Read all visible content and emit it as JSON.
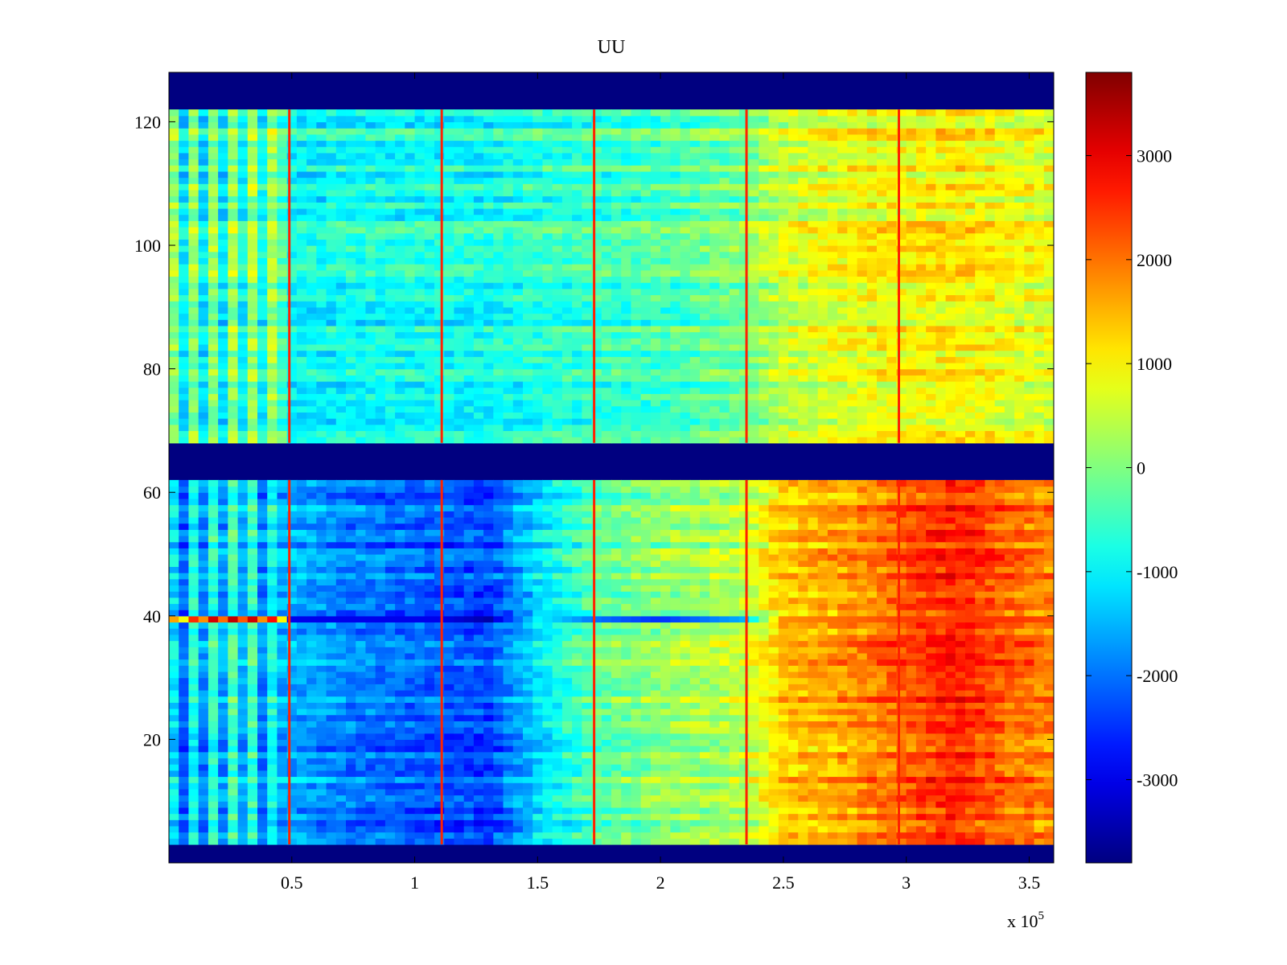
{
  "chart_data": {
    "type": "heatmap",
    "title": "UU",
    "xlabel": "",
    "ylabel": "",
    "x_exponent_label": "x 10",
    "x_exponent_power": "5",
    "xlim": [
      0,
      3.6
    ],
    "ylim": [
      0,
      128
    ],
    "x_ticks": [
      {
        "value": 0.5,
        "label": "0.5"
      },
      {
        "value": 1,
        "label": "1"
      },
      {
        "value": 1.5,
        "label": "1.5"
      },
      {
        "value": 2,
        "label": "2"
      },
      {
        "value": 2.5,
        "label": "2.5"
      },
      {
        "value": 3,
        "label": "3"
      },
      {
        "value": 3.5,
        "label": "3.5"
      }
    ],
    "y_ticks": [
      {
        "value": 20,
        "label": "20"
      },
      {
        "value": 40,
        "label": "40"
      },
      {
        "value": 60,
        "label": "60"
      },
      {
        "value": 80,
        "label": "80"
      },
      {
        "value": 100,
        "label": "100"
      },
      {
        "value": 120,
        "label": "120"
      }
    ],
    "colorbar": {
      "colormap": "jet",
      "range": [
        -3800,
        3800
      ],
      "ticks": [
        {
          "value": 3000,
          "label": "3000"
        },
        {
          "value": 2000,
          "label": "2000"
        },
        {
          "value": 1000,
          "label": "1000"
        },
        {
          "value": 0,
          "label": "0"
        },
        {
          "value": -1000,
          "label": "-1000"
        },
        {
          "value": -2000,
          "label": "-2000"
        },
        {
          "value": -3000,
          "label": "-3000"
        }
      ]
    },
    "empty_bands_y": [
      [
        0,
        3
      ],
      [
        62,
        68
      ],
      [
        122,
        128
      ]
    ],
    "vertical_spike_x": [
      0.49,
      1.11,
      1.73,
      2.35,
      2.97
    ],
    "x_breakpoints": [
      0,
      0.15,
      0.3,
      0.45,
      0.5,
      0.8,
      1.1,
      1.3,
      1.5,
      1.73,
      2.0,
      2.35,
      2.5,
      2.8,
      3.0,
      3.2,
      3.4,
      3.6
    ],
    "upper_block_y": [
      68,
      122
    ],
    "upper_block_profile": [
      -400,
      -500,
      -300,
      -200,
      -900,
      -800,
      -800,
      -800,
      -600,
      -500,
      -400,
      0,
      600,
      900,
      1000,
      1100,
      900,
      800
    ],
    "lower_block_y": [
      3,
      62
    ],
    "lower_block_profile": [
      -1800,
      -1200,
      -1000,
      -1600,
      -1600,
      -2000,
      -2200,
      -2400,
      -1200,
      -300,
      100,
      400,
      1300,
      1700,
      2200,
      2600,
      2100,
      1800
    ],
    "anomaly_row_y": 39,
    "anomaly_row_profile": [
      800,
      2500,
      2800,
      2000,
      -3000,
      -3000,
      -3000,
      -3500,
      -1000,
      -2000,
      -2500,
      -1500,
      1800,
      2100,
      2400,
      2400,
      2500,
      2300
    ],
    "min": -3800,
    "max": 3800
  }
}
